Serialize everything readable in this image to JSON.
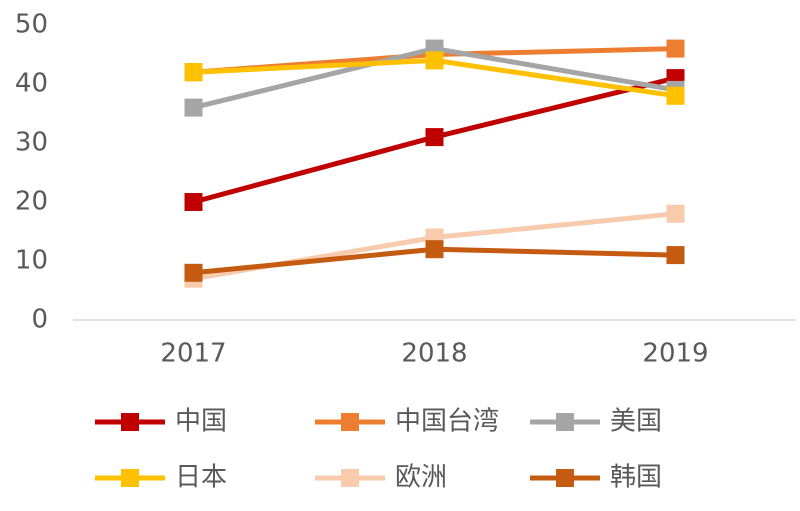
{
  "chart_data": {
    "type": "line",
    "categories": [
      "2017",
      "2018",
      "2019"
    ],
    "series": [
      {
        "name": "中国",
        "color": "#c00000",
        "values": [
          20,
          31,
          41
        ]
      },
      {
        "name": "中国台湾",
        "color": "#ed7d31",
        "values": [
          42,
          45,
          46
        ]
      },
      {
        "name": "美国",
        "color": "#a5a5a5",
        "values": [
          36,
          46,
          39
        ]
      },
      {
        "name": "日本",
        "color": "#ffc000",
        "values": [
          42,
          44,
          38
        ]
      },
      {
        "name": "欧洲",
        "color": "#f8cbad",
        "values": [
          7,
          14,
          18
        ]
      },
      {
        "name": "韩国",
        "color": "#c55a11",
        "values": [
          8,
          12,
          11
        ]
      }
    ],
    "ylim": [
      0,
      50
    ],
    "yticks": [
      0,
      10,
      20,
      30,
      40,
      50
    ],
    "grid": false
  }
}
